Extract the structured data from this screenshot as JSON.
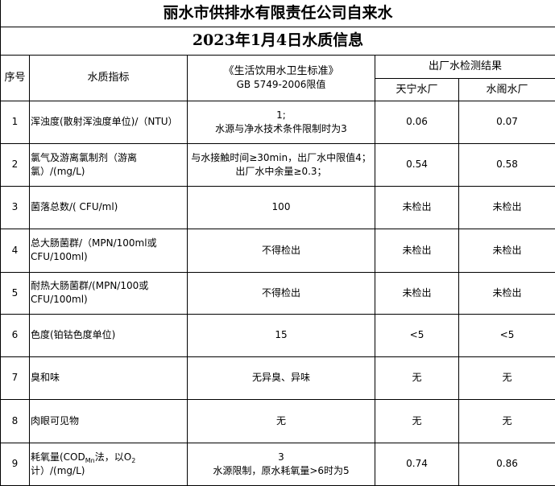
{
  "title": "丽水市供排水有限责任公司自来水",
  "subtitle": "2023年1月4日水质信息",
  "headers": {
    "index": "序号",
    "indicator": "水质指标",
    "standard_line1": "《生活饮用水卫生标准》",
    "standard_line2": "GB 5749-2006限值",
    "results": "出厂水检测结果",
    "plant1": "天宁水厂",
    "plant2": "水阁水厂"
  },
  "rows": [
    {
      "no": "1",
      "indicator": "浑浊度(散射浑浊度单位)/（NTU）",
      "standard_line1": "1;",
      "standard_line2": "水源与净水技术条件限制时为3",
      "plant1": "0.06",
      "plant2": "0.07"
    },
    {
      "no": "2",
      "indicator": "氯气及游离氯制剂（游离氯）/(mg/L)",
      "standard_line1": "与水接触时间≥30min，出厂水中限值4；出厂水中余量≥0.3；",
      "plant1": "0.54",
      "plant2": "0.58"
    },
    {
      "no": "3",
      "indicator": "菌落总数/( CFU/ml)",
      "standard_line1": "100",
      "plant1": "未检出",
      "plant2": "未检出"
    },
    {
      "no": "4",
      "indicator": "总大肠菌群/（MPN/100ml或CFU/100ml)",
      "standard_line1": "不得检出",
      "plant1": "未检出",
      "plant2": "未检出"
    },
    {
      "no": "5",
      "indicator": "耐热大肠菌群/(MPN/100或CFU/100ml)",
      "standard_line1": "不得检出",
      "plant1": "未检出",
      "plant2": "未检出"
    },
    {
      "no": "6",
      "indicator": "色度(铂钴色度单位)",
      "standard_line1": "15",
      "plant1": "<5",
      "plant2": "<5"
    },
    {
      "no": "7",
      "indicator": "臭和味",
      "standard_line1": "无异臭、异味",
      "plant1": "无",
      "plant2": "无"
    },
    {
      "no": "8",
      "indicator": "肉眼可见物",
      "standard_line1": "无",
      "plant1": "无",
      "plant2": "无"
    },
    {
      "no": "9",
      "indicator_parts": [
        "耗氧量(COD",
        "Mn",
        "法，以O",
        "2",
        "计）/(mg/L)"
      ],
      "standard_line1": "3",
      "standard_line2": "水源限制，原水耗氧量>6时为5",
      "plant1": "0.74",
      "plant2": "0.86"
    }
  ]
}
